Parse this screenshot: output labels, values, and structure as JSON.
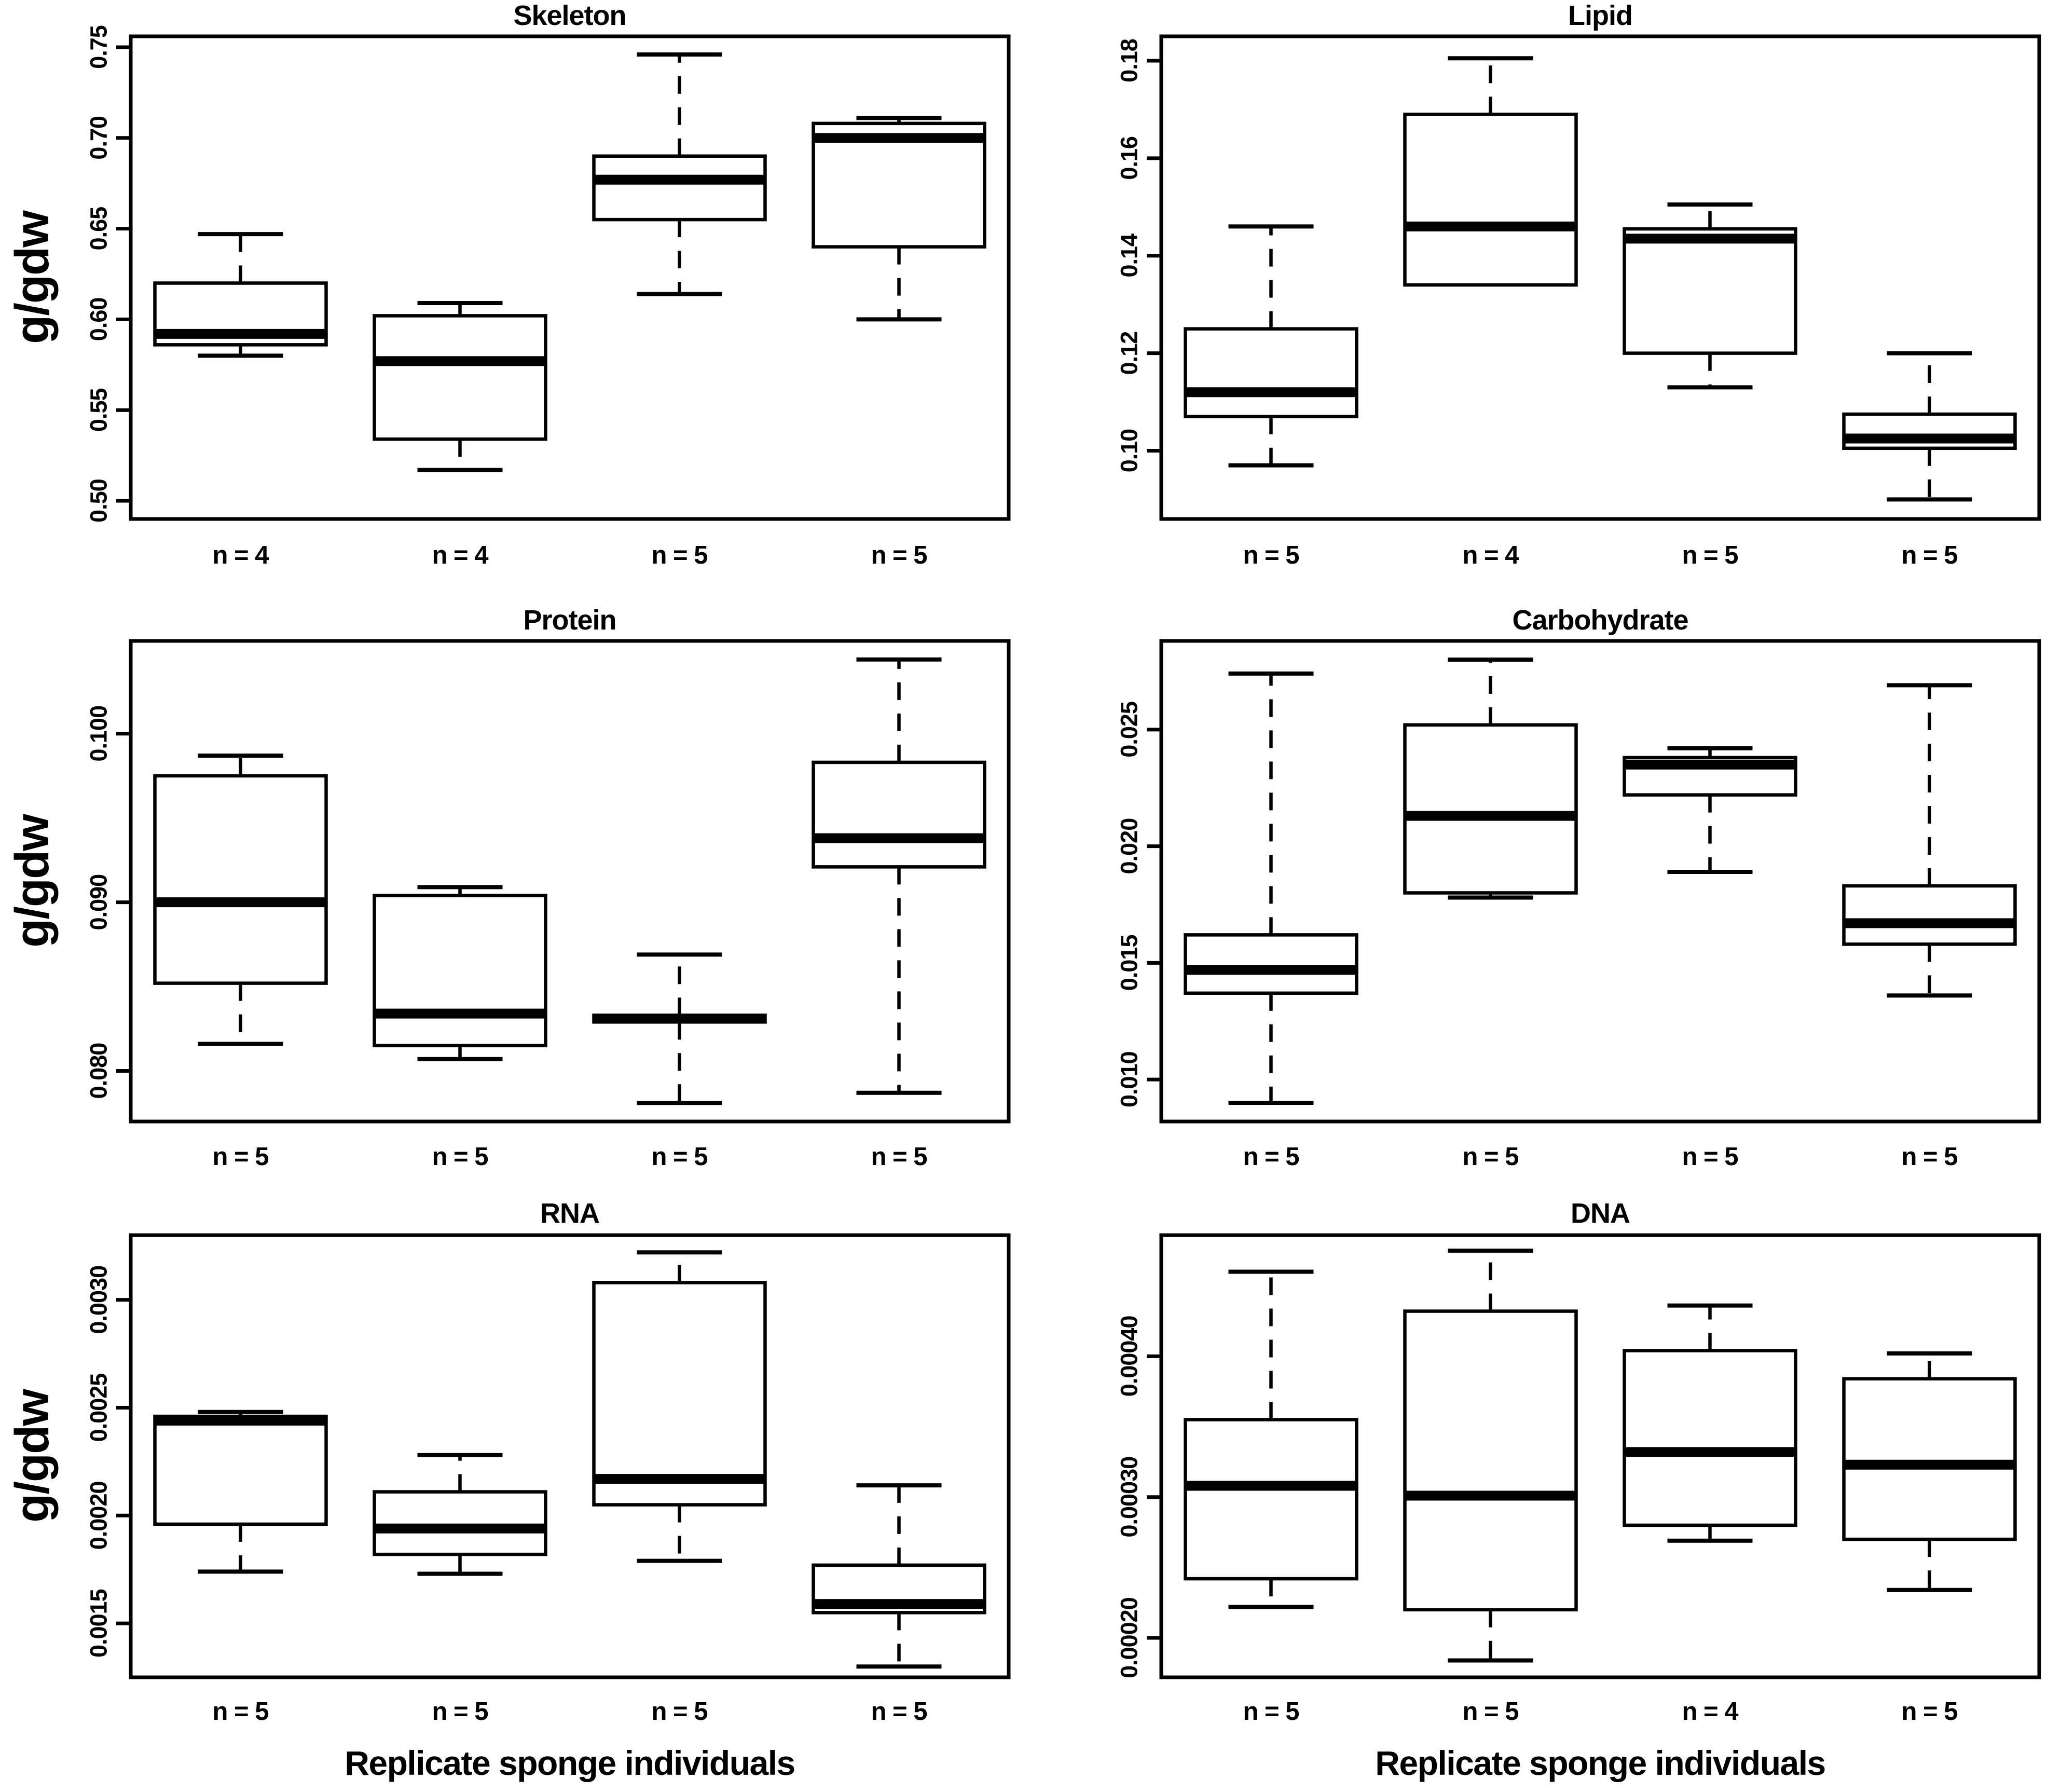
{
  "figure": {
    "background": "#ffffff",
    "ink": "#000000",
    "ylabel": "g/gdw",
    "xlabel": "Replicate sponge individuals"
  },
  "chart_data": [
    {
      "type": "box",
      "title": "Skeleton",
      "row": 0,
      "col": 0,
      "show_ylabel": true,
      "show_xlabel": false,
      "ylim": [
        0.49,
        0.756
      ],
      "yticks": [
        {
          "value": 0.5,
          "label": "0.50"
        },
        {
          "value": 0.55,
          "label": "0.55"
        },
        {
          "value": 0.6,
          "label": "0.60"
        },
        {
          "value": 0.65,
          "label": "0.65"
        },
        {
          "value": 0.7,
          "label": "0.70"
        },
        {
          "value": 0.75,
          "label": "0.75"
        }
      ],
      "categories": [
        "n = 4",
        "n = 4",
        "n = 5",
        "n = 5"
      ],
      "boxes": [
        {
          "whisker_low": 0.58,
          "q1": 0.586,
          "median": 0.592,
          "q3": 0.62,
          "whisker_high": 0.647
        },
        {
          "whisker_low": 0.517,
          "q1": 0.534,
          "median": 0.577,
          "q3": 0.602,
          "whisker_high": 0.609
        },
        {
          "whisker_low": 0.614,
          "q1": 0.655,
          "median": 0.677,
          "q3": 0.69,
          "whisker_high": 0.746
        },
        {
          "whisker_low": 0.6,
          "q1": 0.64,
          "median": 0.7,
          "q3": 0.708,
          "whisker_high": 0.711
        }
      ]
    },
    {
      "type": "box",
      "title": "Lipid",
      "row": 0,
      "col": 1,
      "show_ylabel": false,
      "show_xlabel": false,
      "ylim": [
        0.086,
        0.185
      ],
      "yticks": [
        {
          "value": 0.1,
          "label": "0.10"
        },
        {
          "value": 0.12,
          "label": "0.12"
        },
        {
          "value": 0.14,
          "label": "0.14"
        },
        {
          "value": 0.16,
          "label": "0.16"
        },
        {
          "value": 0.18,
          "label": "0.18"
        }
      ],
      "categories": [
        "n = 5",
        "n = 4",
        "n = 5",
        "n = 5"
      ],
      "boxes": [
        {
          "whisker_low": 0.097,
          "q1": 0.107,
          "median": 0.112,
          "q3": 0.125,
          "whisker_high": 0.146
        },
        {
          "whisker_low": 0.134,
          "q1": 0.134,
          "median": 0.146,
          "q3": 0.169,
          "whisker_high": 0.1805
        },
        {
          "whisker_low": 0.113,
          "q1": 0.12,
          "median": 0.1435,
          "q3": 0.1455,
          "whisker_high": 0.1505
        },
        {
          "whisker_low": 0.09,
          "q1": 0.1005,
          "median": 0.1025,
          "q3": 0.1075,
          "whisker_high": 0.12
        }
      ]
    },
    {
      "type": "box",
      "title": "Protein",
      "row": 1,
      "col": 0,
      "show_ylabel": true,
      "show_xlabel": false,
      "ylim": [
        0.077,
        0.1055
      ],
      "yticks": [
        {
          "value": 0.08,
          "label": "0.080"
        },
        {
          "value": 0.09,
          "label": "0.090"
        },
        {
          "value": 0.1,
          "label": "0.100"
        }
      ],
      "categories": [
        "n = 5",
        "n = 5",
        "n = 5",
        "n = 5"
      ],
      "boxes": [
        {
          "whisker_low": 0.0816,
          "q1": 0.0852,
          "median": 0.09,
          "q3": 0.0975,
          "whisker_high": 0.0987
        },
        {
          "whisker_low": 0.0807,
          "q1": 0.0815,
          "median": 0.0834,
          "q3": 0.0904,
          "whisker_high": 0.0909
        },
        {
          "whisker_low": 0.0781,
          "q1": 0.0829,
          "median": 0.0831,
          "q3": 0.0833,
          "whisker_high": 0.0869
        },
        {
          "whisker_low": 0.0787,
          "q1": 0.0921,
          "median": 0.0938,
          "q3": 0.0983,
          "whisker_high": 0.1044
        }
      ]
    },
    {
      "type": "box",
      "title": "Carbohydrate",
      "row": 1,
      "col": 1,
      "show_ylabel": false,
      "show_xlabel": false,
      "ylim": [
        0.0082,
        0.0288
      ],
      "yticks": [
        {
          "value": 0.01,
          "label": "0.010"
        },
        {
          "value": 0.015,
          "label": "0.015"
        },
        {
          "value": 0.02,
          "label": "0.020"
        },
        {
          "value": 0.025,
          "label": "0.025"
        }
      ],
      "categories": [
        "n = 5",
        "n = 5",
        "n = 5",
        "n = 5"
      ],
      "boxes": [
        {
          "whisker_low": 0.009,
          "q1": 0.0137,
          "median": 0.0147,
          "q3": 0.0162,
          "whisker_high": 0.0274
        },
        {
          "whisker_low": 0.0178,
          "q1": 0.018,
          "median": 0.0213,
          "q3": 0.0252,
          "whisker_high": 0.028
        },
        {
          "whisker_low": 0.0189,
          "q1": 0.0222,
          "median": 0.0235,
          "q3": 0.0238,
          "whisker_high": 0.0242
        },
        {
          "whisker_low": 0.0136,
          "q1": 0.0158,
          "median": 0.0167,
          "q3": 0.0183,
          "whisker_high": 0.0269
        }
      ]
    },
    {
      "type": "box",
      "title": "RNA",
      "row": 2,
      "col": 0,
      "show_ylabel": true,
      "show_xlabel": true,
      "ylim": [
        0.00125,
        0.0033
      ],
      "yticks": [
        {
          "value": 0.0015,
          "label": "0.0015"
        },
        {
          "value": 0.002,
          "label": "0.0020"
        },
        {
          "value": 0.0025,
          "label": "0.0025"
        },
        {
          "value": 0.003,
          "label": "0.0030"
        }
      ],
      "categories": [
        "n = 5",
        "n = 5",
        "n = 5",
        "n = 5"
      ],
      "boxes": [
        {
          "whisker_low": 0.00174,
          "q1": 0.00196,
          "median": 0.00244,
          "q3": 0.00246,
          "whisker_high": 0.00248
        },
        {
          "whisker_low": 0.00173,
          "q1": 0.00182,
          "median": 0.00194,
          "q3": 0.00211,
          "whisker_high": 0.00228
        },
        {
          "whisker_low": 0.00179,
          "q1": 0.00205,
          "median": 0.00217,
          "q3": 0.00308,
          "whisker_high": 0.00322
        },
        {
          "whisker_low": 0.0013,
          "q1": 0.00155,
          "median": 0.00159,
          "q3": 0.00177,
          "whisker_high": 0.00214
        }
      ]
    },
    {
      "type": "box",
      "title": "DNA",
      "row": 2,
      "col": 1,
      "show_ylabel": false,
      "show_xlabel": true,
      "ylim": [
        0.000172,
        0.000486
      ],
      "yticks": [
        {
          "value": 0.0002,
          "label": "0.00020"
        },
        {
          "value": 0.0003,
          "label": "0.00030"
        },
        {
          "value": 0.0004,
          "label": "0.00040"
        }
      ],
      "categories": [
        "n = 5",
        "n = 5",
        "n = 4",
        "n = 5"
      ],
      "boxes": [
        {
          "whisker_low": 0.000222,
          "q1": 0.000242,
          "median": 0.000308,
          "q3": 0.000355,
          "whisker_high": 0.00046
        },
        {
          "whisker_low": 0.000184,
          "q1": 0.00022,
          "median": 0.000301,
          "q3": 0.000432,
          "whisker_high": 0.000475
        },
        {
          "whisker_low": 0.000269,
          "q1": 0.00028,
          "median": 0.000332,
          "q3": 0.000404,
          "whisker_high": 0.000436
        },
        {
          "whisker_low": 0.000234,
          "q1": 0.00027,
          "median": 0.000323,
          "q3": 0.000384,
          "whisker_high": 0.000402
        }
      ]
    }
  ]
}
